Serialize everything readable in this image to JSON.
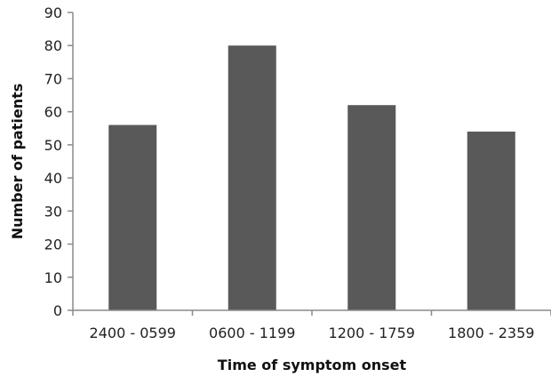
{
  "chart_data": {
    "type": "bar",
    "title": "",
    "xlabel": "Time of symptom onset",
    "ylabel": "Number of patients",
    "categories": [
      "2400 - 0599",
      "0600 - 1199",
      "1200 - 1759",
      "1800 - 2359"
    ],
    "values": [
      56,
      80,
      62,
      54
    ],
    "ylim": [
      0,
      90
    ],
    "yticks": [
      0,
      10,
      20,
      30,
      40,
      50,
      60,
      70,
      80,
      90
    ],
    "grid": false,
    "legend": "none",
    "colors": {
      "bar": "#595959",
      "axis": "#8a8a8a",
      "text": "#222222"
    }
  }
}
